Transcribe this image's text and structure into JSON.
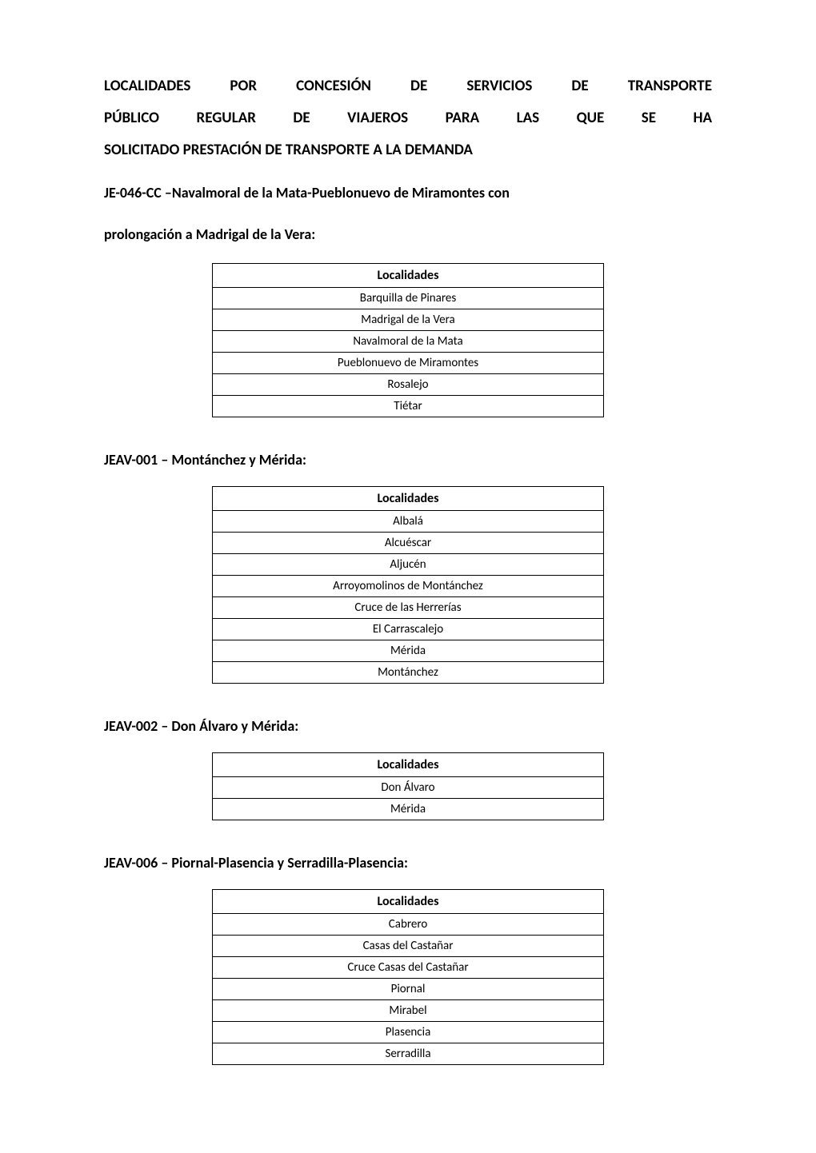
{
  "title_line1": "LOCALIDADES POR CONCESIÓN DE SERVICIOS DE TRANSPORTE",
  "title_line2": "PÚBLICO REGULAR DE VIAJEROS PARA LAS QUE SE HA",
  "title_line3": "SOLICITADO PRESTACIÓN DE TRANSPORTE A LA DEMANDA",
  "subtitle_line1": "JE-046-CC –Navalmoral de la Mata-Pueblonuevo de Miramontes con",
  "subtitle_line2": "prolongación a Madrigal de la Vera:",
  "table_header": "Localidades",
  "sections": [
    {
      "rows": [
        "Barquilla de Pinares",
        "Madrigal de la Vera",
        "Navalmoral de la Mata",
        "Pueblonuevo de Miramontes",
        "Rosalejo",
        "Tiétar"
      ]
    },
    {
      "heading": "JEAV-001 – Montánchez y Mérida:",
      "rows": [
        "Albalá",
        "Alcuéscar",
        "Aljucén",
        "Arroyomolinos de Montánchez",
        "Cruce de las Herrerías",
        "El Carrascalejo",
        "Mérida",
        "Montánchez"
      ]
    },
    {
      "heading": "JEAV-002 – Don Álvaro y Mérida:",
      "rows": [
        "Don Álvaro",
        "Mérida"
      ]
    },
    {
      "heading": "JEAV-006 – Piornal-Plasencia y Serradilla-Plasencia:",
      "rows": [
        "Cabrero",
        "Casas del Castañar",
        "Cruce Casas del Castañar",
        "Piornal",
        "Mirabel",
        "Plasencia",
        "Serradilla"
      ]
    }
  ]
}
